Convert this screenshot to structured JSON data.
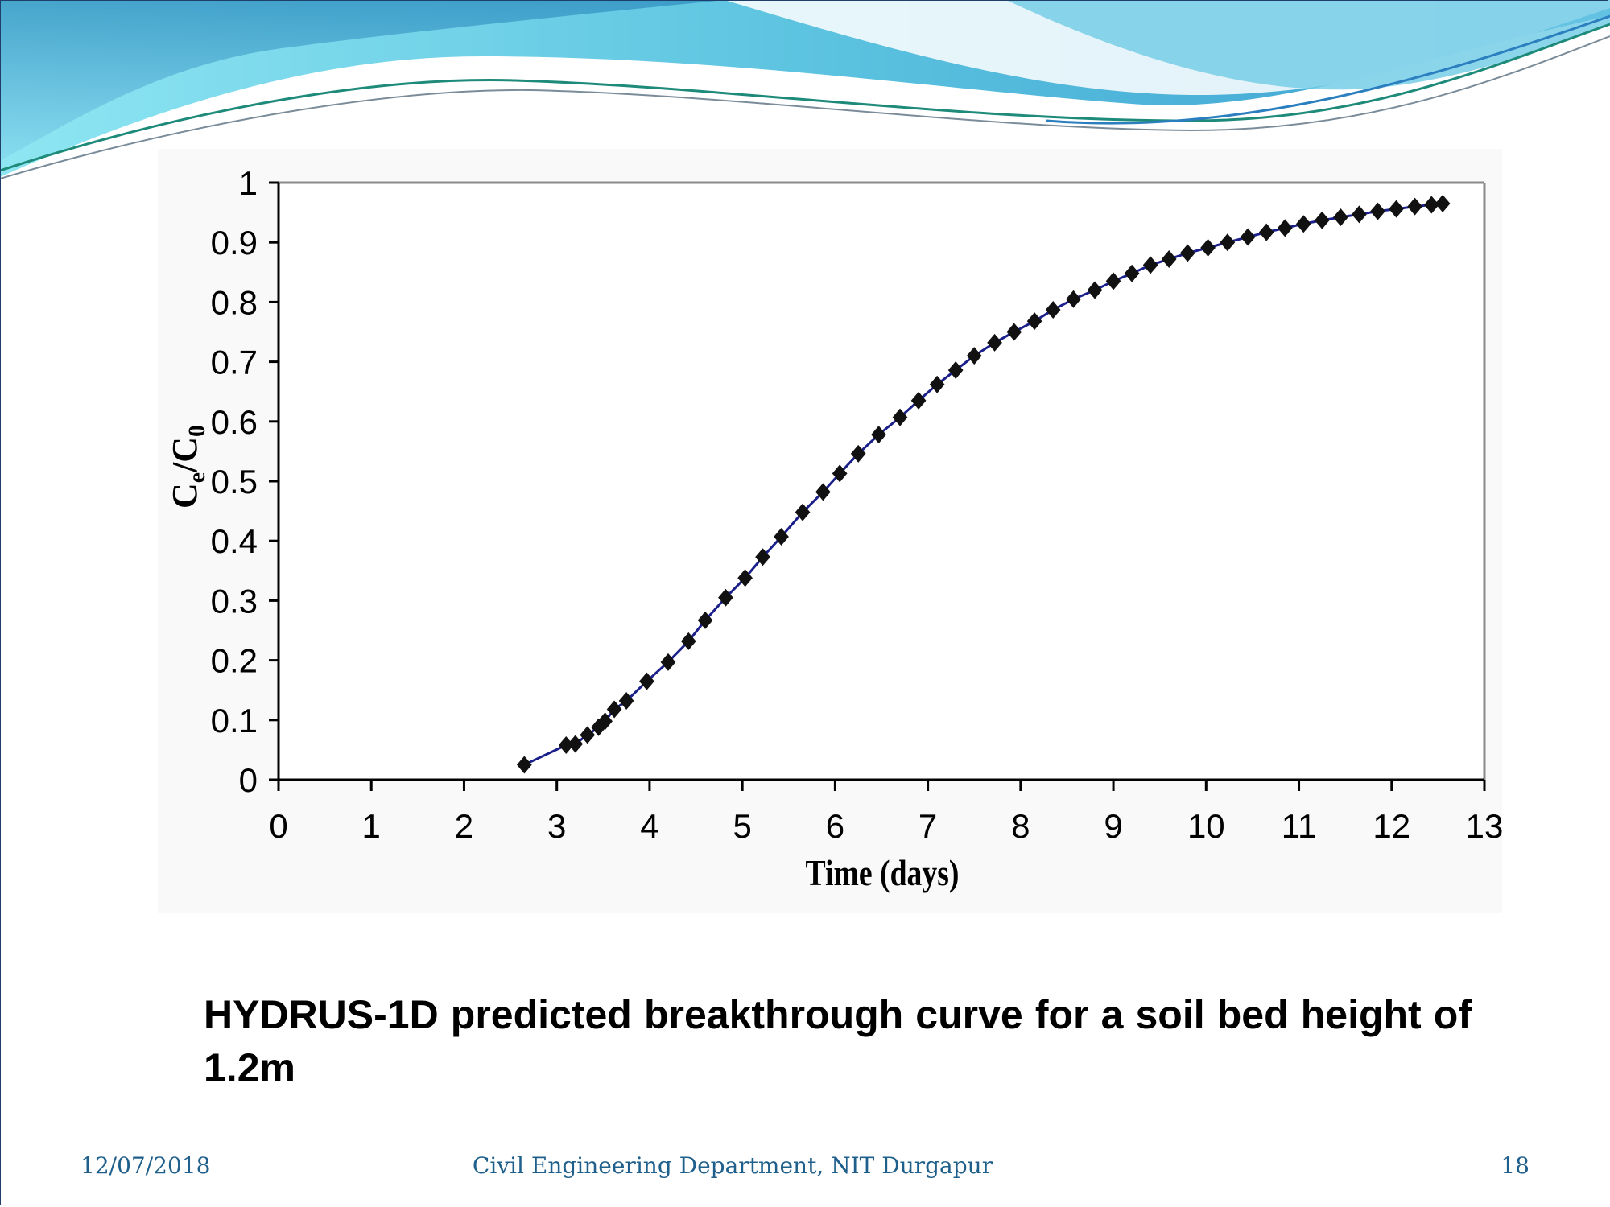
{
  "colors": {
    "banner_light": "#7fe3f0",
    "banner_mid": "#4fb6d8",
    "banner_dark": "#2a7fb0",
    "series_line": "#1a1f8a",
    "marker": "#111111",
    "footer_text": "#1f5f8b"
  },
  "chart_data": {
    "type": "line",
    "title": "",
    "xlabel": "Time (days)",
    "ylabel": "Ce/C0",
    "xlim": [
      0,
      13
    ],
    "ylim": [
      0,
      1
    ],
    "xticks": [
      "0",
      "1",
      "2",
      "3",
      "4",
      "5",
      "6",
      "7",
      "8",
      "9",
      "10",
      "11",
      "12",
      "13"
    ],
    "yticks": [
      "0",
      "0.1",
      "0.2",
      "0.3",
      "0.4",
      "0.5",
      "0.6",
      "0.7",
      "0.8",
      "0.9",
      "1"
    ],
    "grid": false,
    "legend": "none",
    "marker": "diamond",
    "series": [
      {
        "x": [
          2.65,
          3.1,
          3.2,
          3.33,
          3.45,
          3.52,
          3.62,
          3.75,
          3.97,
          4.2,
          4.42,
          4.6,
          4.82,
          5.03,
          5.22,
          5.42,
          5.65,
          5.87,
          6.05,
          6.25,
          6.47,
          6.7,
          6.9,
          7.1,
          7.3,
          7.5,
          7.72,
          7.93,
          8.15,
          8.35,
          8.57,
          8.8,
          9.0,
          9.2,
          9.4,
          9.6,
          9.8,
          10.02,
          10.23,
          10.45,
          10.65,
          10.85,
          11.05,
          11.25,
          11.45,
          11.65,
          11.85,
          12.05,
          12.25,
          12.43,
          12.55
        ],
        "y": [
          0.025,
          0.058,
          0.06,
          0.075,
          0.088,
          0.098,
          0.118,
          0.132,
          0.165,
          0.197,
          0.232,
          0.267,
          0.305,
          0.338,
          0.373,
          0.407,
          0.448,
          0.482,
          0.513,
          0.546,
          0.578,
          0.607,
          0.635,
          0.662,
          0.686,
          0.71,
          0.732,
          0.75,
          0.768,
          0.787,
          0.805,
          0.82,
          0.835,
          0.848,
          0.862,
          0.872,
          0.882,
          0.891,
          0.9,
          0.909,
          0.917,
          0.924,
          0.931,
          0.937,
          0.942,
          0.947,
          0.952,
          0.956,
          0.96,
          0.963,
          0.965
        ]
      }
    ]
  },
  "caption": "HYDRUS-1D predicted breakthrough curve for a soil bed height of 1.2m",
  "footer": {
    "date": "12/07/2018",
    "department": "Civil Engineering Department, NIT Durgapur",
    "page": "18"
  }
}
